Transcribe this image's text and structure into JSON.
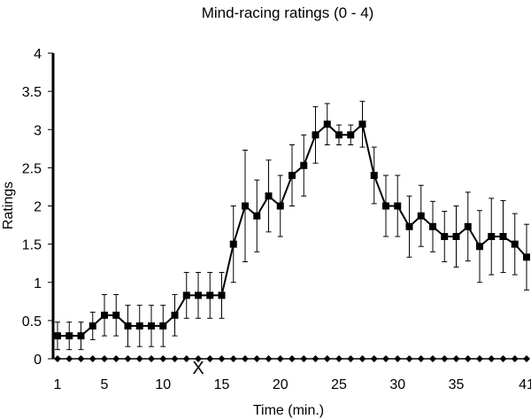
{
  "chart_data": {
    "type": "line",
    "title": "Mind-racing ratings (0 - 4)",
    "xlabel": "Time (min.)",
    "ylabel": "Ratings",
    "xlim": [
      1,
      41
    ],
    "ylim": [
      0,
      4
    ],
    "x_ticks": [
      1,
      5,
      10,
      15,
      20,
      25,
      30,
      35,
      41
    ],
    "y_ticks": [
      "0",
      "0.5",
      "1",
      "1.5",
      "2",
      "2.5",
      "3",
      "3.5",
      "4"
    ],
    "grid": false,
    "legend": "none",
    "annotation": {
      "text": "X",
      "x": 13
    },
    "series": [
      {
        "marker": "square",
        "color": "#000000",
        "x": [
          1,
          2,
          3,
          4,
          5,
          6,
          7,
          8,
          9,
          10,
          11,
          12,
          13,
          14,
          15,
          16,
          17,
          18,
          19,
          20,
          21,
          22,
          23,
          24,
          25,
          26,
          27,
          28,
          29,
          30,
          31,
          32,
          33,
          34,
          35,
          36,
          37,
          38,
          39,
          40,
          41
        ],
        "y": [
          0.3,
          0.3,
          0.3,
          0.43,
          0.57,
          0.57,
          0.43,
          0.43,
          0.43,
          0.43,
          0.57,
          0.83,
          0.83,
          0.83,
          0.83,
          1.5,
          2.0,
          1.87,
          2.13,
          2.0,
          2.4,
          2.53,
          2.93,
          3.07,
          2.93,
          2.93,
          3.07,
          2.4,
          2.0,
          2.0,
          1.73,
          1.87,
          1.73,
          1.6,
          1.6,
          1.73,
          1.47,
          1.6,
          1.6,
          1.5,
          1.33
        ],
        "err": [
          0.18,
          0.18,
          0.18,
          0.18,
          0.27,
          0.27,
          0.27,
          0.27,
          0.27,
          0.27,
          0.27,
          0.3,
          0.3,
          0.3,
          0.3,
          0.5,
          0.73,
          0.47,
          0.47,
          0.4,
          0.4,
          0.4,
          0.37,
          0.27,
          0.13,
          0.13,
          0.3,
          0.37,
          0.4,
          0.4,
          0.4,
          0.4,
          0.33,
          0.33,
          0.4,
          0.45,
          0.47,
          0.5,
          0.47,
          0.4,
          0.43
        ]
      },
      {
        "marker": "diamond",
        "color": "#000000",
        "x": [
          1,
          2,
          3,
          4,
          5,
          6,
          7,
          8,
          9,
          10,
          11,
          12,
          13,
          14,
          15,
          16,
          17,
          18,
          19,
          20,
          21,
          22,
          23,
          24,
          25,
          26,
          27,
          28,
          29,
          30,
          31,
          32,
          33,
          34,
          35,
          36,
          37,
          38,
          39,
          40,
          41
        ],
        "y": [
          0,
          0,
          0,
          0,
          0,
          0,
          0,
          0,
          0,
          0,
          0,
          0,
          0,
          0,
          0,
          0,
          0,
          0,
          0,
          0,
          0,
          0,
          0,
          0,
          0,
          0,
          0,
          0,
          0,
          0,
          0,
          0,
          0,
          0,
          0,
          0,
          0,
          0,
          0,
          0,
          0
        ]
      }
    ]
  }
}
